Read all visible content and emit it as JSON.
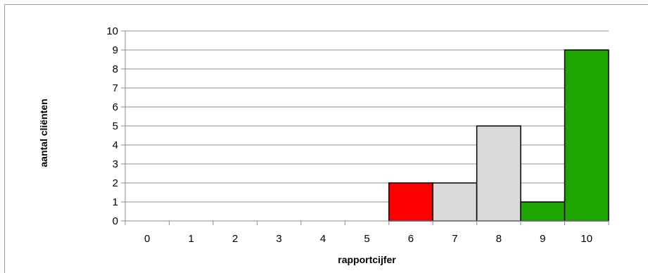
{
  "chart_data": {
    "type": "bar",
    "title": "",
    "xlabel": "rapportcijfer",
    "ylabel": "aantal cliënten",
    "categories": [
      "0",
      "1",
      "2",
      "3",
      "4",
      "5",
      "6",
      "7",
      "8",
      "9",
      "10"
    ],
    "values": [
      0,
      0,
      0,
      0,
      0,
      0,
      2,
      2,
      5,
      1,
      9
    ],
    "bar_colors": [
      "#d9d9d9",
      "#d9d9d9",
      "#d9d9d9",
      "#d9d9d9",
      "#d9d9d9",
      "#d9d9d9",
      "#ff0000",
      "#d9d9d9",
      "#d9d9d9",
      "#1ea500",
      "#1ea500"
    ],
    "ylim": [
      0,
      10
    ],
    "yticks": [
      "0",
      "1",
      "2",
      "3",
      "4",
      "5",
      "6",
      "7",
      "8",
      "9",
      "10"
    ],
    "grid": true,
    "legend": "none"
  }
}
